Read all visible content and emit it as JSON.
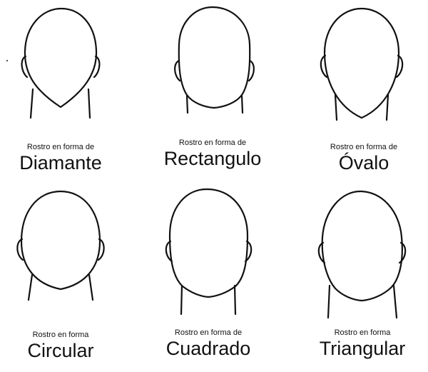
{
  "faces": [
    {
      "shape": "diamond",
      "caption_small": "Rostro en forma de",
      "caption_large": "Diamante"
    },
    {
      "shape": "rectangle",
      "caption_small": "Rostro en forma de",
      "caption_large": "Rectangulo"
    },
    {
      "shape": "oval",
      "caption_small": "Rostro en forma de",
      "caption_large": "Óvalo"
    },
    {
      "shape": "circle",
      "caption_small": "Rostro en forma",
      "caption_large": "Circular"
    },
    {
      "shape": "square",
      "caption_small": "Rostro en forma de",
      "caption_large": "Cuadrado"
    },
    {
      "shape": "triangle",
      "caption_small": "Rostro en forma",
      "caption_large": "Triangular"
    }
  ],
  "colors": {
    "line": "#111111",
    "background": "#ffffff"
  }
}
